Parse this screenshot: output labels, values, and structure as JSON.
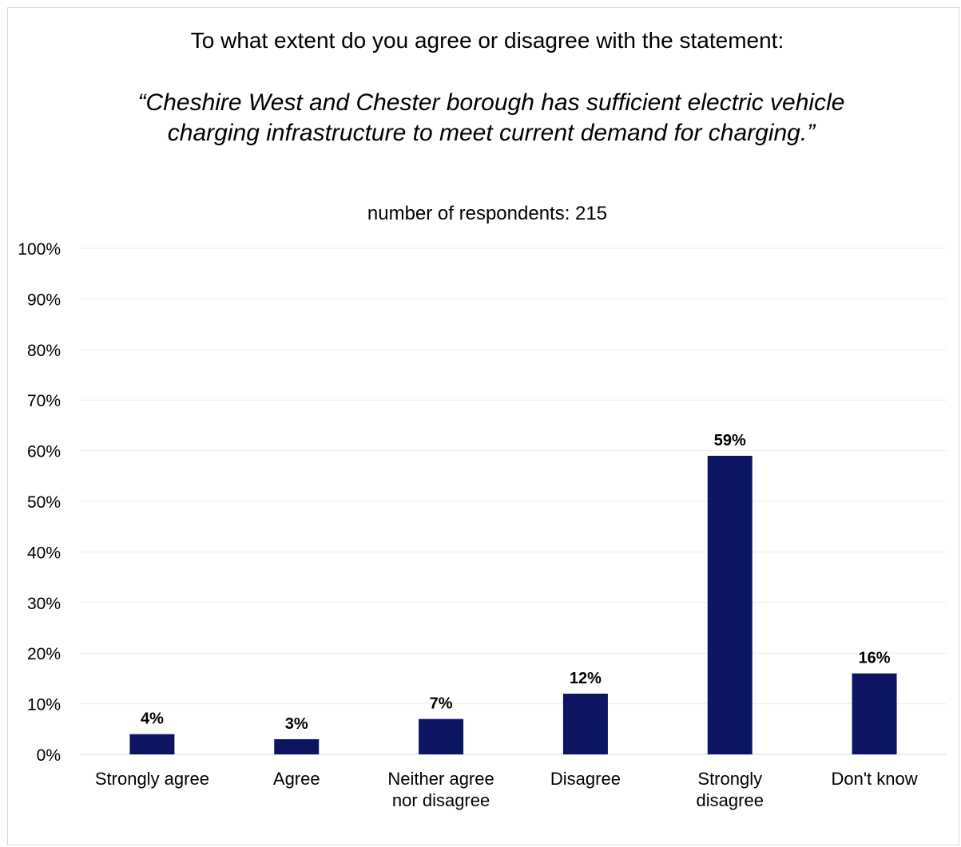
{
  "chart_data": {
    "type": "bar",
    "title": "To what extent do you agree or disagree with the statement:",
    "statement": "“Cheshire West and Chester borough has sufficient electric vehicle charging infrastructure to meet current demand for charging.”",
    "subtitle": "number of respondents: 215",
    "categories": [
      [
        "Strongly agree"
      ],
      [
        "Agree"
      ],
      [
        "Neither agree",
        "nor disagree"
      ],
      [
        "Disagree"
      ],
      [
        "Strongly",
        "disagree"
      ],
      [
        "Don't know"
      ]
    ],
    "values": [
      4,
      3,
      7,
      12,
      59,
      16
    ],
    "value_labels": [
      "4%",
      "3%",
      "7%",
      "12%",
      "59%",
      "16%"
    ],
    "y_ticks": [
      "0%",
      "10%",
      "20%",
      "30%",
      "40%",
      "50%",
      "60%",
      "70%",
      "80%",
      "90%",
      "100%"
    ],
    "ylim": [
      0,
      100
    ],
    "grid": true,
    "legend": "none",
    "bar_color": "#0d1563",
    "gridline_color": "#ececec"
  }
}
